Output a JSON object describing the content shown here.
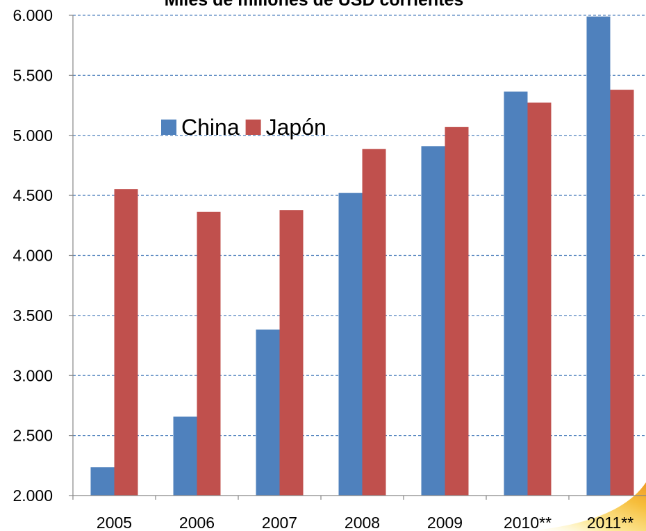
{
  "chart_data": {
    "type": "bar",
    "title": "Miles de millones de USD corrientes",
    "categories": [
      "2005",
      "2006",
      "2007",
      "2008",
      "2009",
      "2010**",
      "2011**"
    ],
    "series": [
      {
        "name": "China",
        "color": "#4F81BD",
        "values": [
          2236,
          2657,
          3382,
          4520,
          4910,
          5365,
          5990
        ]
      },
      {
        "name": "Japón",
        "color": "#C0504D",
        "values": [
          4552,
          4363,
          4378,
          4887,
          5069,
          5273,
          5380
        ]
      }
    ],
    "ylim": [
      2000,
      6000
    ],
    "yticks": [
      2000,
      2500,
      3000,
      3500,
      4000,
      4500,
      5000,
      5500,
      6000
    ],
    "ytick_labels": [
      "2.000",
      "2.500",
      "3.000",
      "3.500",
      "4.000",
      "4.500",
      "5.000",
      "5.500",
      "6.000"
    ],
    "grid": true,
    "grid_style": "dashed",
    "grid_color": "#4F81BD",
    "legend": "inside-top-left"
  },
  "colors": {
    "axis": "#868686",
    "background": "#FFFFFF",
    "swoosh_light": "#FCE68A",
    "swoosh_dark": "#EE9A25"
  }
}
